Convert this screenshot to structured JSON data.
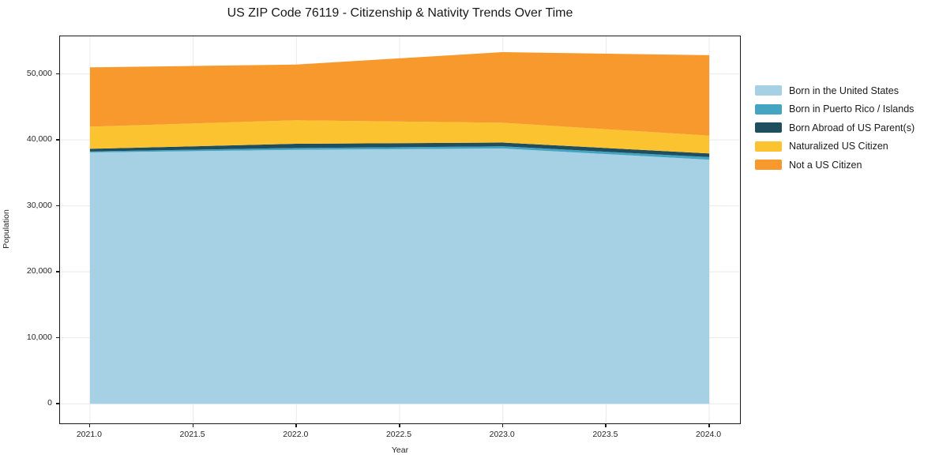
{
  "title": "US ZIP Code 76119 - Citizenship & Nativity Trends Over Time",
  "colors": {
    "spine": "#1a1a1a",
    "grid": "#e9e9e9",
    "tick_text": "#262626",
    "background": "#ffffff"
  },
  "chart_data": {
    "type": "area",
    "stacked": true,
    "title": "US ZIP Code 76119 - Citizenship & Nativity Trends Over Time",
    "xlabel": "Year",
    "ylabel": "Population",
    "x": [
      2021,
      2022,
      2023,
      2024
    ],
    "series": [
      {
        "name": "Born in the United States",
        "color": "#a6d0e4",
        "values": [
          38100,
          38500,
          38700,
          37000
        ]
      },
      {
        "name": "Born in Puerto Rico / Islands",
        "color": "#44a5c2",
        "values": [
          150,
          270,
          320,
          390
        ]
      },
      {
        "name": "Born Abroad of US Parent(s)",
        "color": "#1f4e5f",
        "values": [
          400,
          650,
          580,
          550
        ]
      },
      {
        "name": "Naturalized US Citizen",
        "color": "#fcc330",
        "values": [
          3350,
          3550,
          3000,
          2700
        ]
      },
      {
        "name": "Not a US Citizen",
        "color": "#f8992e",
        "values": [
          9000,
          8450,
          10700,
          12200
        ]
      }
    ],
    "totals": [
      51000,
      51420,
      53300,
      52840
    ],
    "xlim": [
      2020.855,
      2024.145
    ],
    "ylim": [
      -2850,
      55700
    ],
    "x_ticks": [
      2021.0,
      2021.5,
      2022.0,
      2022.5,
      2023.0,
      2023.5,
      2024.0
    ],
    "x_tick_labels": [
      "2021.0",
      "2021.5",
      "2022.0",
      "2022.5",
      "2023.0",
      "2023.5",
      "2024.0"
    ],
    "y_ticks": [
      0,
      10000,
      20000,
      30000,
      40000,
      50000
    ],
    "y_tick_labels": [
      "0",
      "10,000",
      "20,000",
      "30,000",
      "40,000",
      "50,000"
    ],
    "grid": true,
    "legend_position": "right of plot, no frame"
  }
}
